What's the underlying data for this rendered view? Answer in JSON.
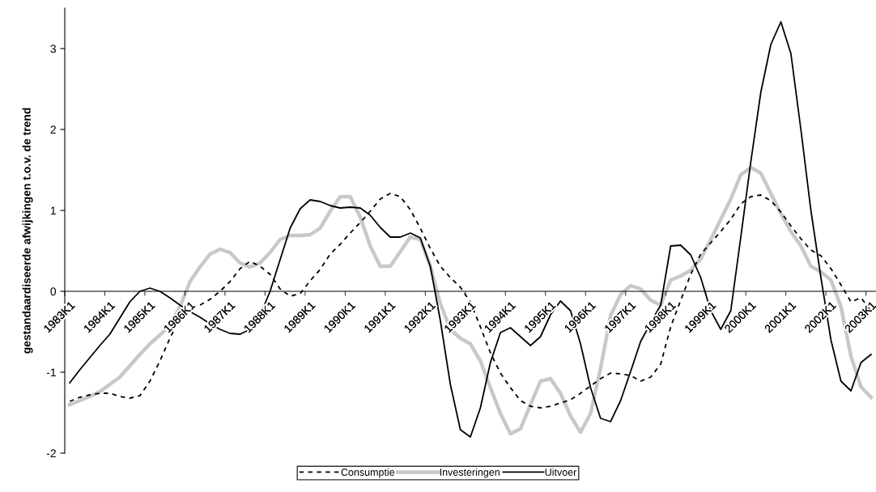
{
  "chart_data": {
    "type": "line",
    "ylabel": "gestandaardiseerde afwijkingen t.o.v. de trend",
    "categories": [
      "1983K1",
      null,
      null,
      null,
      "1984K1",
      null,
      null,
      null,
      "1985K1",
      null,
      null,
      null,
      "1986K1",
      null,
      null,
      null,
      "1987K1",
      null,
      null,
      null,
      "1988K1",
      null,
      null,
      null,
      "1989K1",
      null,
      null,
      null,
      "1990K1",
      null,
      null,
      null,
      "1991K1",
      null,
      null,
      null,
      "1992K1",
      null,
      null,
      null,
      "1993K1",
      null,
      null,
      null,
      "1994K1",
      null,
      null,
      null,
      "1995K1",
      null,
      null,
      null,
      "1996K1",
      null,
      null,
      null,
      "1997K1",
      null,
      null,
      null,
      "1998K1",
      null,
      null,
      null,
      "1999K1",
      null,
      null,
      null,
      "2000K1",
      null,
      null,
      null,
      "2001K1",
      null,
      null,
      null,
      "2002K1",
      null,
      null,
      null,
      "2003K1"
    ],
    "series": [
      {
        "name": "Consumptie",
        "color": "#000000",
        "line_style": "dashed",
        "values": [
          -1.36,
          -1.31,
          -1.28,
          -1.26,
          -1.26,
          -1.3,
          -1.32,
          -1.29,
          -1.11,
          -0.86,
          -0.58,
          -0.33,
          -0.22,
          -0.17,
          -0.1,
          0.0,
          0.12,
          0.28,
          0.37,
          0.31,
          0.21,
          0.03,
          -0.06,
          -0.03,
          0.13,
          0.27,
          0.46,
          0.58,
          0.72,
          0.85,
          0.99,
          1.14,
          1.21,
          1.17,
          1.01,
          0.78,
          0.53,
          0.31,
          0.17,
          0.05,
          -0.13,
          -0.44,
          -0.76,
          -1.01,
          -1.19,
          -1.35,
          -1.42,
          -1.44,
          -1.42,
          -1.38,
          -1.34,
          -1.26,
          -1.17,
          -1.08,
          -1.01,
          -1.02,
          -1.04,
          -1.11,
          -1.06,
          -0.9,
          -0.44,
          -0.11,
          0.21,
          0.46,
          0.6,
          0.74,
          0.89,
          1.08,
          1.17,
          1.19,
          1.12,
          0.98,
          0.81,
          0.65,
          0.51,
          0.44,
          0.28,
          0.08,
          -0.13,
          -0.08,
          -0.24
        ]
      },
      {
        "name": "Investeringen",
        "color": "#c8c8c8",
        "line_style": "solid",
        "values": [
          -1.4,
          -1.35,
          -1.3,
          -1.24,
          -1.15,
          -1.06,
          -0.92,
          -0.78,
          -0.65,
          -0.54,
          -0.42,
          -0.19,
          0.12,
          0.3,
          0.46,
          0.52,
          0.48,
          0.35,
          0.3,
          0.35,
          0.48,
          0.64,
          0.69,
          0.69,
          0.7,
          0.78,
          0.99,
          1.17,
          1.17,
          0.92,
          0.56,
          0.31,
          0.31,
          0.49,
          0.67,
          0.64,
          0.31,
          -0.15,
          -0.47,
          -0.58,
          -0.65,
          -0.86,
          -1.19,
          -1.51,
          -1.76,
          -1.7,
          -1.4,
          -1.11,
          -1.08,
          -1.26,
          -1.54,
          -1.74,
          -1.51,
          -0.95,
          -0.3,
          -0.04,
          0.07,
          0.03,
          -0.11,
          -0.17,
          0.14,
          0.19,
          0.26,
          0.4,
          0.64,
          0.89,
          1.14,
          1.44,
          1.53,
          1.46,
          1.21,
          0.96,
          0.74,
          0.56,
          0.31,
          0.24,
          0.14,
          -0.19,
          -0.8,
          -1.18,
          -1.31
        ]
      },
      {
        "name": "Uitvoer",
        "color": "#000000",
        "line_style": "solid",
        "values": [
          -1.13,
          -0.97,
          -0.82,
          -0.67,
          -0.53,
          -0.33,
          -0.13,
          0.0,
          0.04,
          0.0,
          -0.08,
          -0.17,
          -0.25,
          -0.32,
          -0.4,
          -0.47,
          -0.52,
          -0.53,
          -0.47,
          -0.3,
          0.0,
          0.39,
          0.78,
          1.02,
          1.13,
          1.11,
          1.06,
          1.03,
          1.04,
          1.03,
          0.94,
          0.79,
          0.67,
          0.67,
          0.72,
          0.66,
          0.31,
          -0.36,
          -1.15,
          -1.71,
          -1.8,
          -1.44,
          -0.88,
          -0.51,
          -0.45,
          -0.56,
          -0.67,
          -0.56,
          -0.29,
          -0.12,
          -0.24,
          -0.65,
          -1.19,
          -1.57,
          -1.61,
          -1.35,
          -0.99,
          -0.62,
          -0.39,
          -0.17,
          0.56,
          0.57,
          0.45,
          0.17,
          -0.24,
          -0.47,
          -0.24,
          0.67,
          1.6,
          2.46,
          3.05,
          3.33,
          2.94,
          2.0,
          1.0,
          0.17,
          -0.6,
          -1.11,
          -1.23,
          -0.88,
          -0.78
        ]
      }
    ],
    "ylim": [
      -2,
      3.5
    ],
    "yticks": [
      -2,
      -1,
      0,
      1,
      2,
      3
    ],
    "grid": false,
    "legend": "bottom",
    "marker": "none"
  }
}
